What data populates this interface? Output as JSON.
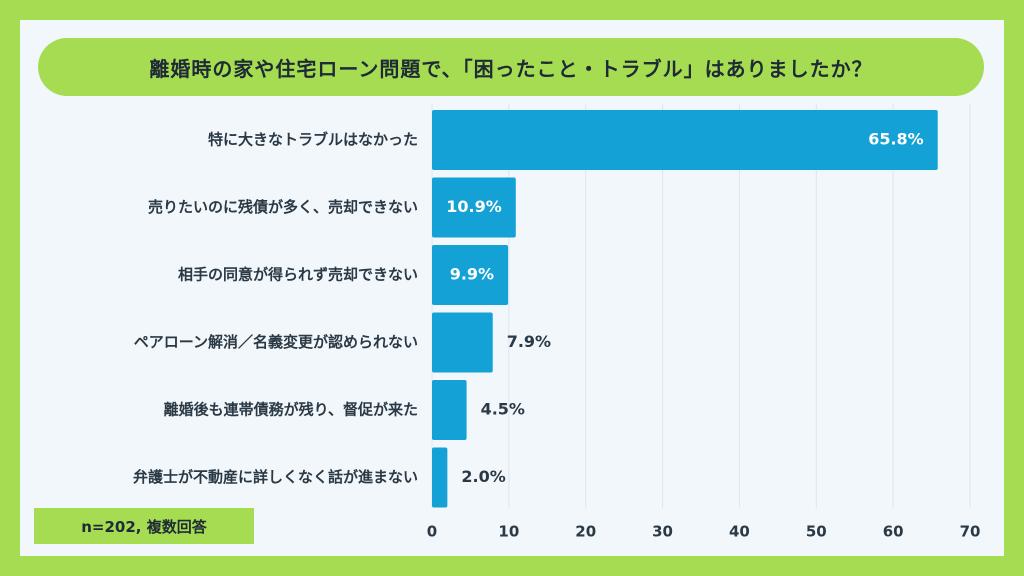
{
  "chart_data": {
    "type": "bar",
    "orientation": "horizontal",
    "title": "離婚時の家や住宅ローン問題で、「困ったこと・トラブル」はありましたか？",
    "categories": [
      "特に大きなトラブルはなかった",
      "売りたいのに残債が多く、売却できない",
      "相手の同意が得られず売却できない",
      "ペアローン解消／名義変更が認められない",
      "離婚後も連帯債務が残り、督促が来た",
      "弁護士が不動産に詳しくなく話が進まない"
    ],
    "values": [
      65.8,
      10.9,
      9.9,
      7.9,
      4.5,
      2.0
    ],
    "value_labels": [
      "65.8%",
      "10.9%",
      "9.9%",
      "7.9%",
      "4.5%",
      "2.0%"
    ],
    "xlim": [
      0,
      70
    ],
    "x_ticks": [
      0,
      10,
      20,
      30,
      40,
      50,
      60,
      70
    ],
    "grid": true,
    "note": "n=202, 複数回答",
    "colors": {
      "background": "#a5dc52",
      "panel": "#f1f7fb",
      "bar": "#14a1d6",
      "grid": "#dfe6ec",
      "label_inside": "#ffffff",
      "label_outside": "#2b3945"
    }
  }
}
